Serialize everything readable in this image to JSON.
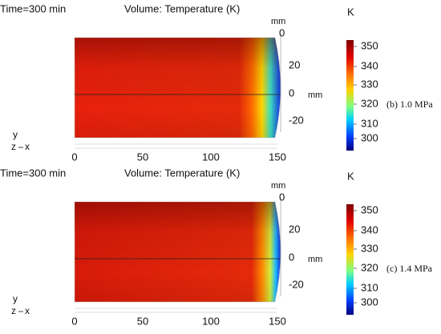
{
  "panels": [
    {
      "time": "Time=300 min",
      "quantity": "Volume: Temperature (K)",
      "unit_top": "mm",
      "unit_side": "mm",
      "colorbar_unit": "K",
      "side_ticks": [
        "0",
        "20",
        "0",
        "-20"
      ],
      "x_ticks": [
        "0",
        "50",
        "100",
        "150"
      ],
      "colorbar_ticks": [
        "350",
        "340",
        "330",
        "320",
        "310",
        "300"
      ],
      "caption": "(b) 1.0 MPa",
      "triad": [
        "y",
        "z",
        "x"
      ]
    },
    {
      "time": "Time=300 min",
      "quantity": "Volume: Temperature (K)",
      "unit_top": "mm",
      "unit_side": "mm",
      "colorbar_unit": "K",
      "side_ticks": [
        "0",
        "20",
        "0",
        "-20"
      ],
      "x_ticks": [
        "0",
        "50",
        "100",
        "150"
      ],
      "colorbar_ticks": [
        "350",
        "340",
        "330",
        "320",
        "310",
        "300"
      ],
      "caption": "(c) 1.4 MPa",
      "triad": [
        "y",
        "z",
        "x"
      ]
    }
  ]
}
